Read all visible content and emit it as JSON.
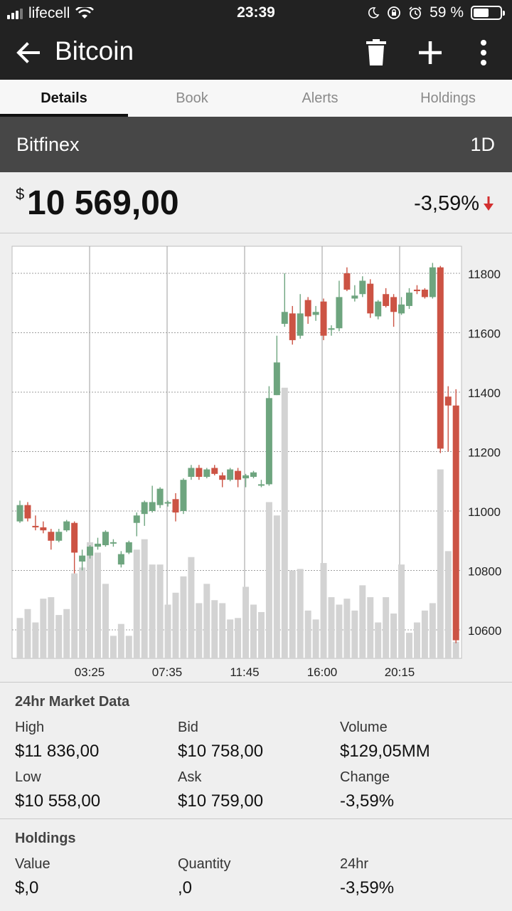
{
  "status_bar": {
    "carrier": "lifecell",
    "time": "23:39",
    "battery": "59 %",
    "battery_level": 0.59,
    "signal_bars": 3
  },
  "app_bar": {
    "title": "Bitcoin",
    "icons": [
      "back-arrow-icon",
      "trash-icon",
      "plus-icon",
      "more-vert-icon"
    ]
  },
  "tabs": [
    {
      "label": "Details",
      "active": true
    },
    {
      "label": "Book",
      "active": false
    },
    {
      "label": "Alerts",
      "active": false
    },
    {
      "label": "Holdings",
      "active": false
    }
  ],
  "exchange": {
    "name": "Bitfinex",
    "interval": "1D"
  },
  "price": {
    "currency": "$",
    "value": "10 569,00",
    "change": "-3,59%",
    "direction": "down"
  },
  "colors": {
    "up": "#6ea57f",
    "down": "#cc5344",
    "volume": "#d3d3d3",
    "accent_down": "#d32f2f"
  },
  "chart_data": {
    "type": "candlestick",
    "x_tick_labels": [
      "03:25",
      "07:35",
      "11:45",
      "16:00",
      "20:15"
    ],
    "y_tick_labels": [
      "11800",
      "11600",
      "11400",
      "11200",
      "11000",
      "10800",
      "10600"
    ],
    "ylim": [
      10520,
      11900
    ],
    "grid": true,
    "candles": [
      {
        "o": 10965,
        "c": 11020,
        "h": 11035,
        "l": 10960,
        "v": 10640
      },
      {
        "o": 11020,
        "c": 10975,
        "h": 11030,
        "l": 10965,
        "v": 10670
      },
      {
        "o": 10950,
        "c": 10945,
        "h": 10985,
        "l": 10935,
        "v": 10625
      },
      {
        "o": 10945,
        "c": 10935,
        "h": 10965,
        "l": 10925,
        "v": 10705
      },
      {
        "o": 10930,
        "c": 10900,
        "h": 10940,
        "l": 10870,
        "v": 10710
      },
      {
        "o": 10900,
        "c": 10930,
        "h": 10940,
        "l": 10895,
        "v": 10650
      },
      {
        "o": 10935,
        "c": 10965,
        "h": 10970,
        "l": 10930,
        "v": 10670
      },
      {
        "o": 10960,
        "c": 10860,
        "h": 10965,
        "l": 10790,
        "v": 10790
      },
      {
        "o": 10830,
        "c": 10850,
        "h": 10870,
        "l": 10800,
        "v": 10810
      },
      {
        "o": 10850,
        "c": 10880,
        "h": 10885,
        "l": 10840,
        "v": 10895
      },
      {
        "o": 10880,
        "c": 10890,
        "h": 10910,
        "l": 10870,
        "v": 10860
      },
      {
        "o": 10885,
        "c": 10930,
        "h": 10935,
        "l": 10880,
        "v": 10755
      },
      {
        "o": 10895,
        "c": 10895,
        "h": 10905,
        "l": 10880,
        "v": 10580
      },
      {
        "o": 10820,
        "c": 10855,
        "h": 10865,
        "l": 10810,
        "v": 10620
      },
      {
        "o": 10860,
        "c": 10895,
        "h": 10900,
        "l": 10855,
        "v": 10580
      },
      {
        "o": 10960,
        "c": 10985,
        "h": 10995,
        "l": 10915,
        "v": 10870
      },
      {
        "o": 10990,
        "c": 11030,
        "h": 11035,
        "l": 10950,
        "v": 10905
      },
      {
        "o": 11000,
        "c": 11030,
        "h": 11085,
        "l": 10995,
        "v": 10820
      },
      {
        "o": 11020,
        "c": 11075,
        "h": 11080,
        "l": 11010,
        "v": 10820
      },
      {
        "o": 11025,
        "c": 11030,
        "h": 11035,
        "l": 11015,
        "v": 10685
      },
      {
        "o": 11040,
        "c": 10995,
        "h": 11060,
        "l": 10965,
        "v": 10725
      },
      {
        "o": 11000,
        "c": 11105,
        "h": 11110,
        "l": 10990,
        "v": 10780
      },
      {
        "o": 11115,
        "c": 11145,
        "h": 11155,
        "l": 11105,
        "v": 10845
      },
      {
        "o": 11145,
        "c": 11115,
        "h": 11155,
        "l": 11105,
        "v": 10690
      },
      {
        "o": 11115,
        "c": 11140,
        "h": 11145,
        "l": 11110,
        "v": 10755
      },
      {
        "o": 11145,
        "c": 11125,
        "h": 11155,
        "l": 11120,
        "v": 10700
      },
      {
        "o": 11120,
        "c": 11105,
        "h": 11130,
        "l": 11080,
        "v": 10690
      },
      {
        "o": 11105,
        "c": 11140,
        "h": 11145,
        "l": 11100,
        "v": 10635
      },
      {
        "o": 11135,
        "c": 11105,
        "h": 11145,
        "l": 11080,
        "v": 10640
      },
      {
        "o": 11110,
        "c": 11120,
        "h": 11125,
        "l": 11080,
        "v": 10745
      },
      {
        "o": 11115,
        "c": 11130,
        "h": 11135,
        "l": 11110,
        "v": 10685
      },
      {
        "o": 11090,
        "c": 11090,
        "h": 11105,
        "l": 11080,
        "v": 10660
      },
      {
        "o": 11090,
        "c": 11380,
        "h": 11420,
        "l": 11085,
        "v": 11030
      },
      {
        "o": 11390,
        "c": 11500,
        "h": 11590,
        "l": 11390,
        "v": 10985
      },
      {
        "o": 11630,
        "c": 11670,
        "h": 11800,
        "l": 11620,
        "v": 11415
      },
      {
        "o": 11665,
        "c": 11575,
        "h": 11690,
        "l": 11560,
        "v": 10800
      },
      {
        "o": 11590,
        "c": 11665,
        "h": 11730,
        "l": 11580,
        "v": 10805
      },
      {
        "o": 11710,
        "c": 11655,
        "h": 11720,
        "l": 11630,
        "v": 10665
      },
      {
        "o": 11660,
        "c": 11670,
        "h": 11690,
        "l": 11640,
        "v": 10635
      },
      {
        "o": 11705,
        "c": 11590,
        "h": 11715,
        "l": 11575,
        "v": 10825
      },
      {
        "o": 11610,
        "c": 11615,
        "h": 11625,
        "l": 11590,
        "v": 10710
      },
      {
        "o": 11615,
        "c": 11720,
        "h": 11775,
        "l": 11605,
        "v": 10685
      },
      {
        "o": 11800,
        "c": 11745,
        "h": 11820,
        "l": 11740,
        "v": 10705
      },
      {
        "o": 11715,
        "c": 11725,
        "h": 11760,
        "l": 11705,
        "v": 10665
      },
      {
        "o": 11730,
        "c": 11775,
        "h": 11790,
        "l": 11720,
        "v": 10750
      },
      {
        "o": 11765,
        "c": 11665,
        "h": 11780,
        "l": 11650,
        "v": 10710
      },
      {
        "o": 11655,
        "c": 11705,
        "h": 11710,
        "l": 11645,
        "v": 10625
      },
      {
        "o": 11730,
        "c": 11690,
        "h": 11750,
        "l": 11685,
        "v": 10710
      },
      {
        "o": 11720,
        "c": 11670,
        "h": 11730,
        "l": 11620,
        "v": 10655
      },
      {
        "o": 11665,
        "c": 11695,
        "h": 11720,
        "l": 11660,
        "v": 10820
      },
      {
        "o": 11690,
        "c": 11735,
        "h": 11750,
        "l": 11680,
        "v": 10590
      },
      {
        "o": 11745,
        "c": 11740,
        "h": 11760,
        "l": 11730,
        "v": 10625
      },
      {
        "o": 11745,
        "c": 11720,
        "h": 11750,
        "l": 11715,
        "v": 10665
      },
      {
        "o": 11720,
        "c": 11820,
        "h": 11835,
        "l": 11715,
        "v": 10690
      },
      {
        "o": 11820,
        "c": 11210,
        "h": 11825,
        "l": 11195,
        "v": 11140
      },
      {
        "o": 11385,
        "c": 11355,
        "h": 11420,
        "l": 11200,
        "v": 10865
      },
      {
        "o": 11355,
        "c": 10565,
        "h": 11410,
        "l": 10555,
        "v": 10560
      }
    ]
  },
  "market_data": {
    "title": "24hr Market Data",
    "items": [
      {
        "label": "High",
        "value": "$11 836,00"
      },
      {
        "label": "Bid",
        "value": "$10 758,00"
      },
      {
        "label": "Volume",
        "value": "$129,05MM"
      },
      {
        "label": "Low",
        "value": "$10 558,00"
      },
      {
        "label": "Ask",
        "value": "$10 759,00"
      },
      {
        "label": "Change",
        "value": "-3,59%"
      }
    ]
  },
  "holdings": {
    "title": "Holdings",
    "items": [
      {
        "label": "Value",
        "value": "$,0"
      },
      {
        "label": "Quantity",
        "value": ",0"
      },
      {
        "label": "24hr",
        "value": "-3,59%"
      }
    ]
  }
}
